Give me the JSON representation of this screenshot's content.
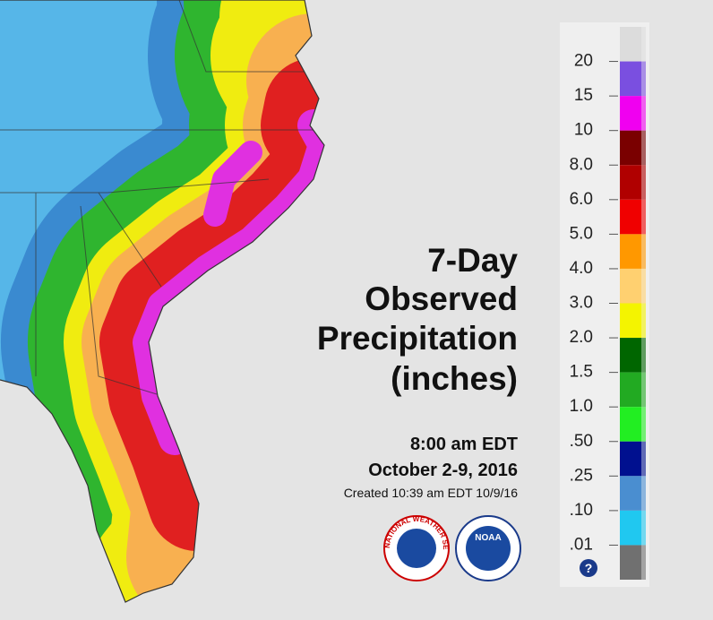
{
  "title": [
    "7-Day",
    "Observed",
    "Precipitation",
    "(inches)"
  ],
  "valid_time": "8:00 am EDT",
  "period": "October 2-9, 2016",
  "created": "Created 10:39 am EDT 10/9/16",
  "legend": {
    "labels": [
      "20",
      "15",
      "10",
      "8.0",
      "6.0",
      "5.0",
      "4.0",
      "3.0",
      "2.0",
      "1.5",
      "1.0",
      ".50",
      ".25",
      ".10",
      ".01"
    ],
    "colors": [
      "#dcdcdc",
      "#7a4fe0",
      "#f000f0",
      "#7a0000",
      "#b00000",
      "#f00000",
      "#ff9800",
      "#ffd070",
      "#f4f400",
      "#006600",
      "#22aa22",
      "#22ee22",
      "#00108f",
      "#4a8ed0",
      "#20c8f0",
      "#707070"
    ]
  },
  "logos": {
    "nws": "NATIONAL WEATHER SERVICE",
    "noaa": "NOAA"
  },
  "help": "?"
}
